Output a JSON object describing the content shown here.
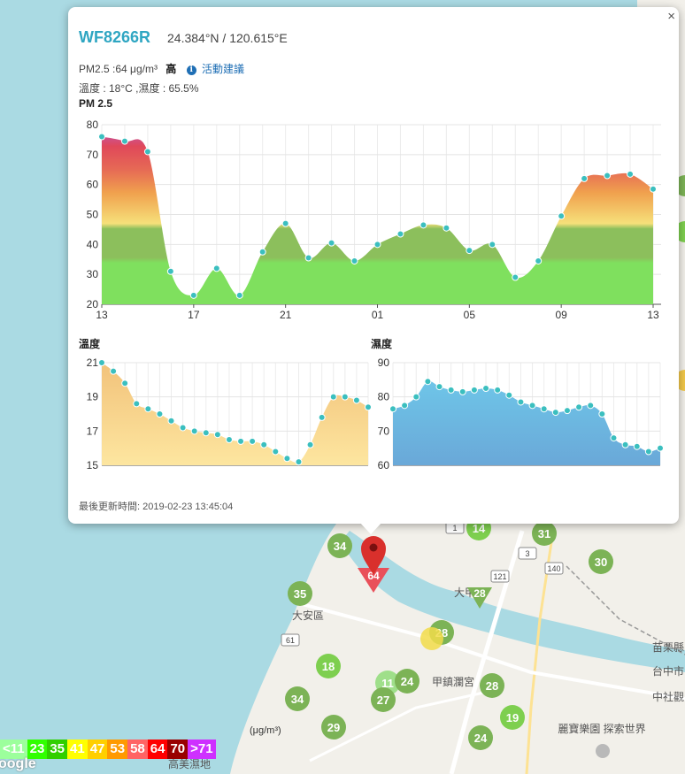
{
  "popup": {
    "station_id": "WF8266R",
    "coords": "24.384°N / 120.615°E",
    "pm_text": "PM2.5 :64 μg/m³",
    "pm_level": "高",
    "advice_link": "活動建議",
    "temp_humidity": "溫度 : 18°C ,濕度 : 65.5%",
    "close_label": "×",
    "updated": "最後更新時間: 2019-02-23 13:45:04"
  },
  "chart_data": [
    {
      "type": "area",
      "title": "PM 2.5",
      "ylim": [
        20,
        80
      ],
      "yticks": [
        20,
        30,
        40,
        50,
        60,
        70,
        80
      ],
      "xtick_labels": [
        "13",
        "17",
        "21",
        "01",
        "05",
        "09",
        "13"
      ],
      "x_tick_indices": [
        0,
        4,
        8,
        12,
        16,
        20,
        24
      ],
      "grid": true,
      "values": [
        76,
        74.5,
        71,
        31,
        23,
        32,
        23,
        37.5,
        47,
        35.5,
        40.5,
        34.5,
        40,
        43.5,
        46.5,
        45.5,
        38,
        40,
        29,
        34.5,
        49.5,
        62,
        63,
        63.5,
        58.5
      ]
    },
    {
      "type": "area",
      "title": "溫度",
      "ylim": [
        15,
        21
      ],
      "yticks": [
        15,
        17,
        19,
        21
      ],
      "grid": true,
      "values": [
        21,
        20.5,
        19.8,
        18.6,
        18.3,
        18.0,
        17.6,
        17.2,
        17.0,
        16.9,
        16.8,
        16.5,
        16.4,
        16.4,
        16.2,
        15.8,
        15.4,
        15.2,
        16.2,
        17.8,
        19.0,
        19.0,
        18.8,
        18.4
      ]
    },
    {
      "type": "area",
      "title": "濕度",
      "ylim": [
        60,
        90
      ],
      "yticks": [
        60,
        70,
        80,
        90
      ],
      "grid": true,
      "values": [
        76.5,
        77.5,
        80,
        84.5,
        83,
        82,
        81.5,
        82,
        82.5,
        82,
        80.5,
        78.5,
        77.5,
        76.5,
        75.5,
        76,
        77,
        77.5,
        75,
        68,
        66,
        65.5,
        64,
        65
      ]
    }
  ],
  "map": {
    "clusters": [
      {
        "value": "34",
        "color": "#7cb356"
      },
      {
        "value": "14",
        "color": "#7ecf4f"
      },
      {
        "value": "31",
        "color": "#7cb356"
      },
      {
        "value": "30",
        "color": "#7cb356"
      },
      {
        "value": "35",
        "color": "#7cb356"
      },
      {
        "value": "28",
        "color": "#7cb356"
      },
      {
        "value": "28",
        "color": "#7cb356"
      },
      {
        "value": "18",
        "color": "#7ecf4f"
      },
      {
        "value": "11",
        "color": "#9fdf8a"
      },
      {
        "value": "24",
        "color": "#7cb356"
      },
      {
        "value": "27",
        "color": "#7cb356"
      },
      {
        "value": "28",
        "color": "#7cb356"
      },
      {
        "value": "34",
        "color": "#7cb356"
      },
      {
        "value": "19",
        "color": "#7ecf4f"
      },
      {
        "value": "29",
        "color": "#7cb356"
      },
      {
        "value": "24",
        "color": "#7cb356"
      }
    ],
    "selected_marker_value": "64",
    "place_labels": [
      "大安區",
      "甲鎮瀾宮",
      "麗寶樂園 探索世界",
      "苗栗縣",
      "台中市",
      "中社觀",
      "高美濕地",
      "大甲"
    ],
    "road_shields": [
      "61",
      "121",
      "140",
      "3",
      "1"
    ]
  },
  "legend": {
    "unit": "(μg/m³)",
    "items": [
      {
        "label": "<11",
        "color": "#9cff9c"
      },
      {
        "label": "23",
        "color": "#31ff00"
      },
      {
        "label": "35",
        "color": "#31cf00"
      },
      {
        "label": "41",
        "color": "#ffff00"
      },
      {
        "label": "47",
        "color": "#ffcf00"
      },
      {
        "label": "53",
        "color": "#ff9a00"
      },
      {
        "label": "58",
        "color": "#ff6464"
      },
      {
        "label": "64",
        "color": "#ff0000"
      },
      {
        "label": "70",
        "color": "#990000"
      },
      {
        "label": ">71",
        "color": "#ce30ff"
      }
    ]
  },
  "attribution": "oogle"
}
